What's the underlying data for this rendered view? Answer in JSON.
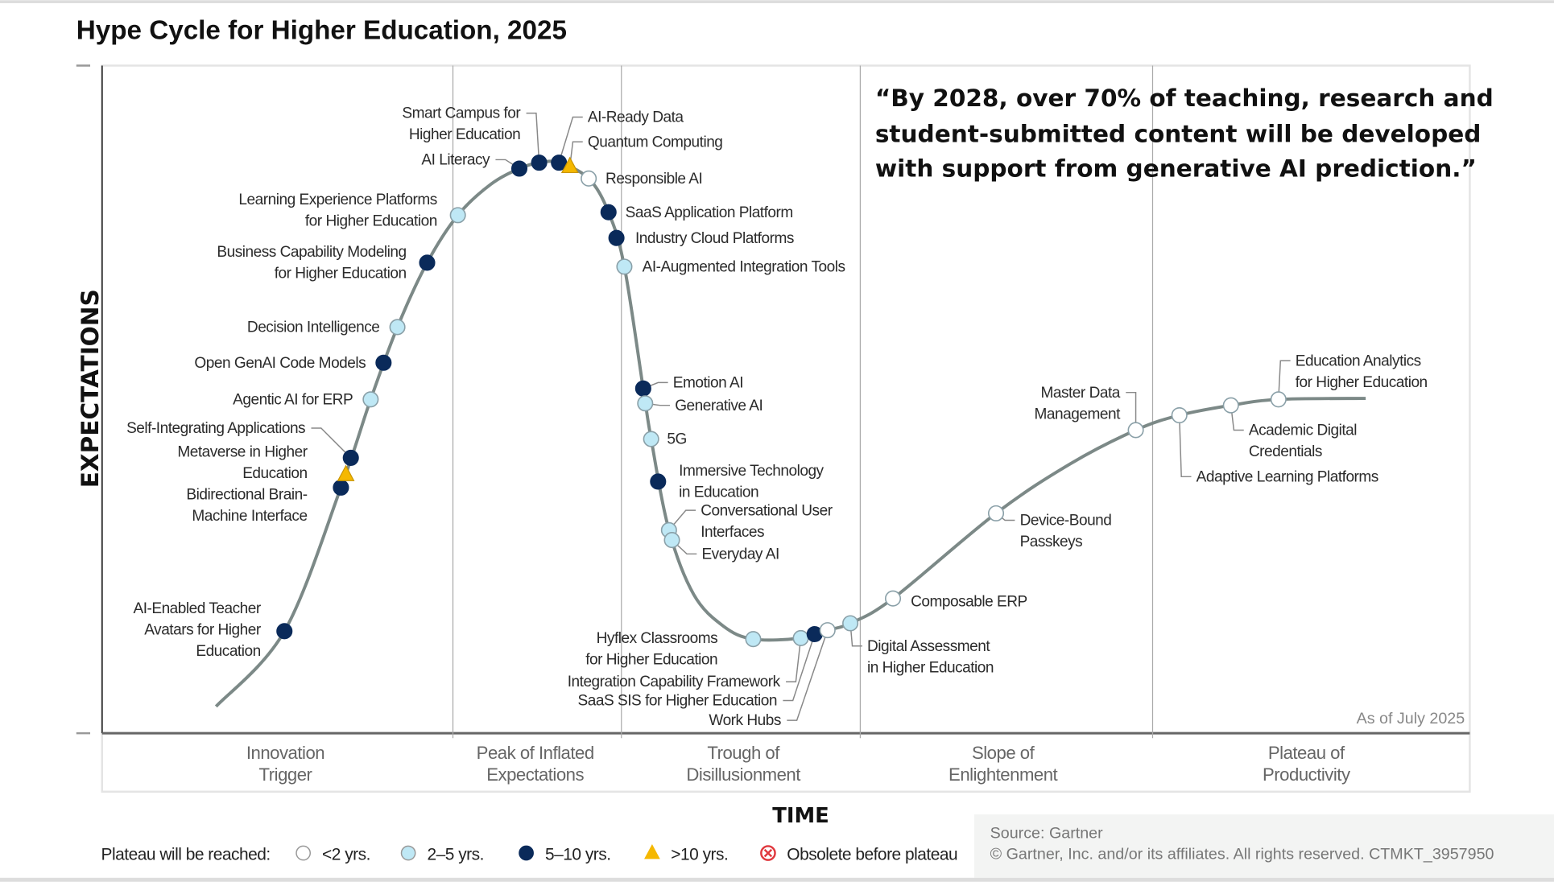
{
  "chart_data": {
    "type": "scatter",
    "title": "Hype Cycle for Higher Education, 2025",
    "ylabel": "EXPECTATIONS",
    "xlabel": "TIME",
    "as_of": "As of July 2025",
    "phases": [
      [
        "Innovation",
        "Trigger"
      ],
      [
        "Peak of Inflated",
        "Expectations"
      ],
      [
        "Trough of",
        "Disillusionment"
      ],
      [
        "Slope of",
        "Enlightenment"
      ],
      [
        "Plateau of",
        "Productivity"
      ]
    ],
    "quote": [
      "“By 2028, over 70% of teaching, research and",
      "student-submitted content will be developed",
      "with support from generative AI prediction.”"
    ],
    "legend": {
      "title": "Plateau will be reached:",
      "items": [
        {
          "key": "lt2",
          "label": "<2 yrs.",
          "color": "#ffffff"
        },
        {
          "key": "2to5",
          "label": "2–5 yrs.",
          "color": "#bfe8f5"
        },
        {
          "key": "5to10",
          "label": "5–10 yrs.",
          "color": "#0a2a5a"
        },
        {
          "key": "gt10",
          "label": ">10 yrs.",
          "color": "#f5b800"
        },
        {
          "key": "obsolete",
          "label": "Obsolete before plateau",
          "color": "#e0383e"
        }
      ]
    },
    "technologies": [
      {
        "name": [
          "AI-Enabled Teacher",
          "Avatars for Higher",
          "Education"
        ],
        "plateau": "5to10"
      },
      {
        "name": [
          "Bidirectional Brain-",
          "Machine Interface"
        ],
        "plateau": "5to10"
      },
      {
        "name": [
          "Metaverse in Higher",
          "Education"
        ],
        "plateau": "gt10"
      },
      {
        "name": [
          "Self-Integrating Applications"
        ],
        "plateau": "5to10"
      },
      {
        "name": [
          "Agentic AI for ERP"
        ],
        "plateau": "2to5"
      },
      {
        "name": [
          "Open GenAI Code Models"
        ],
        "plateau": "5to10"
      },
      {
        "name": [
          "Decision Intelligence"
        ],
        "plateau": "2to5"
      },
      {
        "name": [
          "Business Capability Modeling",
          "for Higher Education"
        ],
        "plateau": "5to10"
      },
      {
        "name": [
          "Learning Experience Platforms",
          "for Higher Education"
        ],
        "plateau": "2to5"
      },
      {
        "name": [
          "AI Literacy"
        ],
        "plateau": "5to10"
      },
      {
        "name": [
          "Smart Campus for",
          "Higher Education"
        ],
        "plateau": "5to10"
      },
      {
        "name": [
          "AI-Ready Data"
        ],
        "plateau": "5to10"
      },
      {
        "name": [
          "Quantum Computing"
        ],
        "plateau": "gt10"
      },
      {
        "name": [
          "Responsible AI"
        ],
        "plateau": "lt2"
      },
      {
        "name": [
          "SaaS Application Platform"
        ],
        "plateau": "5to10"
      },
      {
        "name": [
          "Industry Cloud Platforms"
        ],
        "plateau": "5to10"
      },
      {
        "name": [
          "AI-Augmented Integration Tools"
        ],
        "plateau": "2to5"
      },
      {
        "name": [
          "Emotion AI"
        ],
        "plateau": "5to10"
      },
      {
        "name": [
          "Generative AI"
        ],
        "plateau": "2to5"
      },
      {
        "name": [
          "5G"
        ],
        "plateau": "2to5"
      },
      {
        "name": [
          "Immersive Technology",
          "in Education"
        ],
        "plateau": "5to10"
      },
      {
        "name": [
          "Conversational User",
          "Interfaces"
        ],
        "plateau": "2to5"
      },
      {
        "name": [
          "Everyday AI"
        ],
        "plateau": "2to5"
      },
      {
        "name": [
          "Hyflex Classrooms",
          "for Higher Education"
        ],
        "plateau": "2to5"
      },
      {
        "name": [
          "Integration Capability Framework"
        ],
        "plateau": "2to5"
      },
      {
        "name": [
          "SaaS SIS for Higher Education"
        ],
        "plateau": "5to10"
      },
      {
        "name": [
          "Work Hubs"
        ],
        "plateau": "lt2"
      },
      {
        "name": [
          "Digital Assessment",
          "in Higher Education"
        ],
        "plateau": "2to5"
      },
      {
        "name": [
          "Composable ERP"
        ],
        "plateau": "lt2"
      },
      {
        "name": [
          "Device-Bound",
          "Passkeys"
        ],
        "plateau": "lt2"
      },
      {
        "name": [
          "Master Data",
          "Management"
        ],
        "plateau": "lt2"
      },
      {
        "name": [
          "Adaptive Learning Platforms"
        ],
        "plateau": "lt2"
      },
      {
        "name": [
          "Academic Digital",
          "Credentials"
        ],
        "plateau": "lt2"
      },
      {
        "name": [
          "Education Analytics",
          "for Higher Education"
        ],
        "plateau": "lt2"
      }
    ],
    "source": "Source: Gartner",
    "copyright": "© Gartner, Inc. and/or its affiliates. All rights reserved. CTMKT_3957950"
  }
}
